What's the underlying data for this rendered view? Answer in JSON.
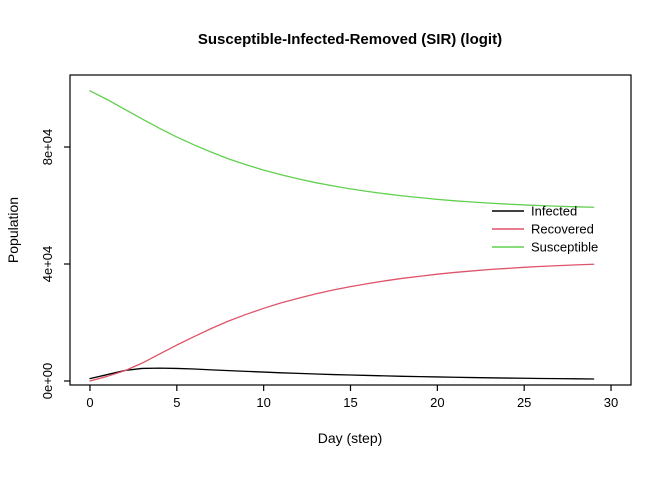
{
  "chart_data": {
    "type": "line",
    "title": "Susceptible-Infected-Removed (SIR) (logit)",
    "xlabel": "Day (step)",
    "ylabel": "Population",
    "grid": false,
    "legend_position": "right-middle",
    "xlim": [
      -1.15,
      31.15
    ],
    "ylim": [
      -1370,
      104620
    ],
    "xticks": [
      0,
      5,
      10,
      15,
      20,
      25,
      30
    ],
    "yticks": [
      {
        "value": 0,
        "label": "0e+00"
      },
      {
        "value": 40000,
        "label": "4e+04"
      },
      {
        "value": 80000,
        "label": "8e+04"
      }
    ],
    "x": [
      0,
      1,
      2,
      3,
      4,
      5,
      6,
      7,
      8,
      9,
      10,
      11,
      12,
      13,
      14,
      15,
      16,
      17,
      18,
      19,
      20,
      21,
      22,
      23,
      24,
      25,
      26,
      27,
      28,
      29
    ],
    "series": [
      {
        "name": "Infected",
        "color": "#000000",
        "values": [
          800,
          2200,
          3600,
          4300,
          4400,
          4300,
          4100,
          3800,
          3550,
          3300,
          3050,
          2800,
          2600,
          2400,
          2200,
          2050,
          1900,
          1750,
          1600,
          1500,
          1380,
          1280,
          1180,
          1090,
          1010,
          930,
          860,
          800,
          740,
          690
        ]
      },
      {
        "name": "Recovered",
        "color": "#DF536B",
        "values": [
          0,
          1600,
          3500,
          6100,
          9200,
          12300,
          15200,
          18000,
          20550,
          22800,
          24850,
          26700,
          28300,
          29800,
          31100,
          32250,
          33300,
          34250,
          35100,
          35800,
          36520,
          37120,
          37620,
          38110,
          38490,
          38870,
          39190,
          39450,
          39710,
          39910
        ]
      },
      {
        "name": "Susceptible",
        "color": "#61D04F",
        "values": [
          99200,
          96200,
          92900,
          89600,
          86400,
          83400,
          80700,
          78200,
          75900,
          73900,
          72100,
          70500,
          69100,
          67800,
          66700,
          65700,
          64800,
          64000,
          63300,
          62700,
          62100,
          61600,
          61200,
          60800,
          60500,
          60200,
          59950,
          59750,
          59550,
          59400
        ]
      }
    ]
  }
}
